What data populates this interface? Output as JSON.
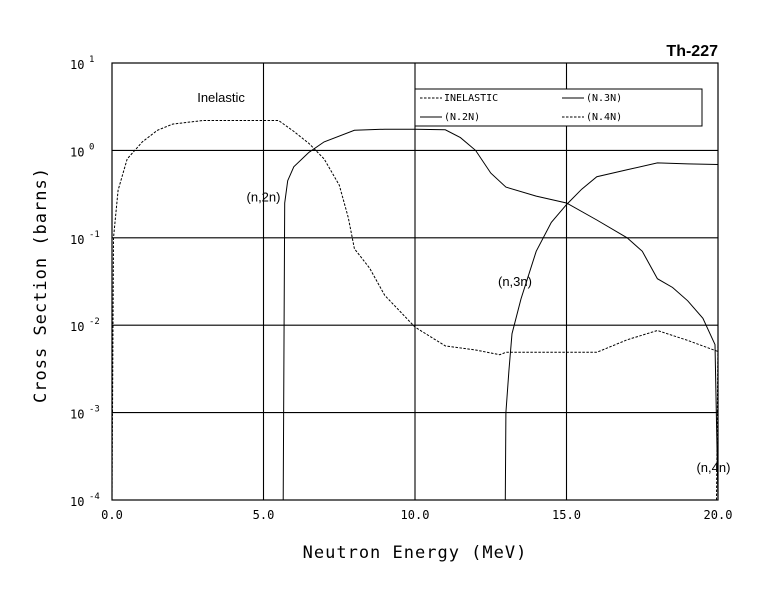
{
  "chart_data": {
    "type": "line",
    "title": "Th-227",
    "xlabel": "Neutron Energy (MeV)",
    "ylabel": "Cross Section (barns)",
    "xlim": [
      0,
      20
    ],
    "ylim_log10": [
      -4,
      1
    ],
    "y_scale": "log",
    "grid": true,
    "legend_position": "top-right",
    "x_ticks": [
      "0.0",
      "5.0",
      "10.0",
      "15.0",
      "20.0"
    ],
    "y_ticks": [
      {
        "base": "10",
        "exp": "1"
      },
      {
        "base": "10",
        "exp": "0"
      },
      {
        "base": "10",
        "exp": "-1"
      },
      {
        "base": "10",
        "exp": "-2"
      },
      {
        "base": "10",
        "exp": "-3"
      },
      {
        "base": "10",
        "exp": "-4"
      }
    ],
    "series": [
      {
        "name": "INELASTIC",
        "style": "dashed",
        "points": [
          [
            0.0,
            0.0001
          ],
          [
            0.05,
            0.1
          ],
          [
            0.2,
            0.35
          ],
          [
            0.5,
            0.8
          ],
          [
            1.0,
            1.25
          ],
          [
            1.5,
            1.7
          ],
          [
            2.0,
            2.0
          ],
          [
            3.0,
            2.2
          ],
          [
            4.0,
            2.2
          ],
          [
            5.0,
            2.2
          ],
          [
            5.5,
            2.2
          ],
          [
            6.0,
            1.65
          ],
          [
            6.5,
            1.2
          ],
          [
            7.0,
            0.8
          ],
          [
            7.5,
            0.4
          ],
          [
            7.8,
            0.17
          ],
          [
            8.0,
            0.075
          ],
          [
            8.5,
            0.045
          ],
          [
            9.0,
            0.022
          ],
          [
            10.0,
            0.0095
          ],
          [
            11.0,
            0.0058
          ],
          [
            12.0,
            0.0052
          ],
          [
            12.8,
            0.0046
          ],
          [
            13.0,
            0.0049
          ],
          [
            14.0,
            0.0049
          ],
          [
            15.0,
            0.0049
          ],
          [
            16.0,
            0.0049
          ],
          [
            17.0,
            0.0068
          ],
          [
            18.0,
            0.0087
          ],
          [
            19.0,
            0.0067
          ],
          [
            20.0,
            0.005
          ]
        ]
      },
      {
        "name": "(N.2N)",
        "style": "solid",
        "points": [
          [
            5.65,
            0.0001
          ],
          [
            5.7,
            0.25
          ],
          [
            5.8,
            0.45
          ],
          [
            6.0,
            0.65
          ],
          [
            6.5,
            0.95
          ],
          [
            7.0,
            1.25
          ],
          [
            8.0,
            1.7
          ],
          [
            9.0,
            1.75
          ],
          [
            10.0,
            1.75
          ],
          [
            11.0,
            1.72
          ],
          [
            11.5,
            1.4
          ],
          [
            12.0,
            1.0
          ],
          [
            12.5,
            0.55
          ],
          [
            13.0,
            0.38
          ],
          [
            14.0,
            0.3
          ],
          [
            15.0,
            0.25
          ],
          [
            16.0,
            0.16
          ],
          [
            17.0,
            0.1
          ],
          [
            17.5,
            0.07
          ],
          [
            18.0,
            0.034
          ],
          [
            18.5,
            0.027
          ],
          [
            19.0,
            0.019
          ],
          [
            19.5,
            0.012
          ],
          [
            19.9,
            0.006
          ],
          [
            20.0,
            0.0001
          ]
        ]
      },
      {
        "name": "(N.3N)",
        "style": "solid",
        "points": [
          [
            12.98,
            0.0001
          ],
          [
            13.0,
            0.001
          ],
          [
            13.1,
            0.003
          ],
          [
            13.2,
            0.008
          ],
          [
            13.5,
            0.02
          ],
          [
            14.0,
            0.07
          ],
          [
            14.5,
            0.15
          ],
          [
            15.0,
            0.24
          ],
          [
            15.5,
            0.36
          ],
          [
            16.0,
            0.5
          ],
          [
            17.0,
            0.6
          ],
          [
            18.0,
            0.72
          ],
          [
            19.0,
            0.7
          ],
          [
            20.0,
            0.69
          ]
        ]
      },
      {
        "name": "(N.4N)",
        "style": "dashed",
        "points": [
          [
            19.95,
            0.0001
          ],
          [
            20.0,
            0.0065
          ]
        ]
      }
    ],
    "annotations": [
      {
        "label": "Inelastic",
        "x": 3.6,
        "y": 3.6
      },
      {
        "label": "(n,2n)",
        "x": 5.0,
        "y": 0.26
      },
      {
        "label": "(n,3n)",
        "x": 13.3,
        "y": 0.028
      },
      {
        "label": "(n,4n)",
        "x": 19.85,
        "y": 0.00021
      }
    ]
  }
}
